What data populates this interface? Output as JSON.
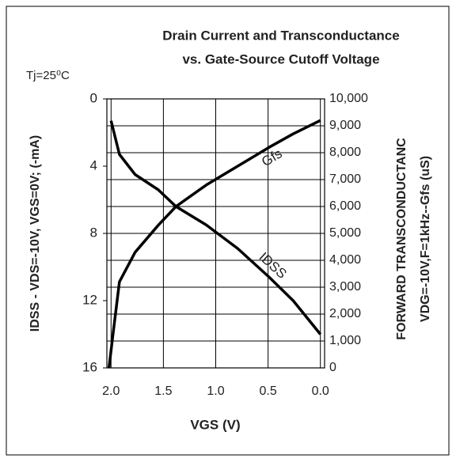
{
  "chart_data": {
    "type": "line",
    "title": [
      "Drain Current and Transconductance",
      "vs. Gate-Source Cutoff Voltage"
    ],
    "annotation": "Tj=25⁰C",
    "x_label": "VGS (V)",
    "y_label": "IDSS - VDS=-10V, VGS=0V; (-mA)",
    "y2_label": [
      "FORWARD TRANSCONDUCTANC",
      "VDG=-10V,F=1kHz--Gfs (uS)"
    ],
    "xlim": [
      2.04,
      -0.04
    ],
    "xticks": [
      {
        "value": 2,
        "label": "2.0"
      },
      {
        "value": 1.5,
        "label": "1.5"
      },
      {
        "value": 1,
        "label": "1.0"
      },
      {
        "value": 0.5,
        "label": "0.5"
      },
      {
        "value": 0,
        "label": "0.0"
      }
    ],
    "ylim": [
      16,
      0
    ],
    "yticks": [
      0,
      4,
      8,
      12,
      16
    ],
    "y2lim": [
      0,
      10000
    ],
    "y2ticks": [
      0,
      {
        "value": 1000,
        "label": "1,000"
      },
      {
        "value": 2000,
        "label": "2,000"
      },
      {
        "value": 3000,
        "label": "3,000"
      },
      {
        "value": 4000,
        "label": "4,000"
      },
      {
        "value": 5000,
        "label": "5,000"
      },
      {
        "value": 6000,
        "label": "6,000"
      },
      {
        "value": 7000,
        "label": "7,000"
      },
      {
        "value": 8000,
        "label": "8,000"
      },
      {
        "value": 9000,
        "label": "9,000"
      },
      {
        "value": 10000,
        "label": "10,000"
      }
    ],
    "grid": true,
    "series": [
      {
        "name": "IDSS",
        "color": "#000000",
        "axis": "y",
        "x": [
          2.0,
          1.92,
          1.77,
          1.55,
          1.38,
          1.09,
          0.79,
          0.49,
          0.26,
          0.0
        ],
        "values": [
          1.3,
          3.3,
          4.5,
          5.4,
          6.4,
          7.5,
          8.9,
          10.6,
          12.0,
          14.0
        ]
      },
      {
        "name": "Gfs",
        "color": "#000000",
        "axis": "y2",
        "x": [
          2.02,
          1.98,
          1.92,
          1.77,
          1.55,
          1.38,
          1.09,
          0.79,
          0.49,
          0.26,
          0.0
        ],
        "values": [
          0,
          1300,
          3200,
          4300,
          5300,
          6000,
          6800,
          7500,
          8200,
          8700,
          9200
        ]
      }
    ]
  }
}
